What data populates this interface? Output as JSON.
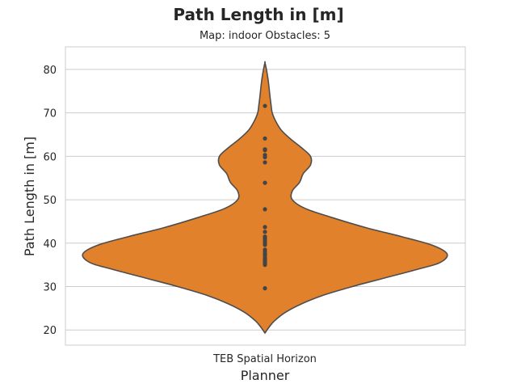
{
  "chart_data": {
    "type": "violin",
    "title": "Path Length in [m]",
    "subtitle": "Map: indoor Obstacles: 5",
    "xlabel": "Planner",
    "ylabel": "Path Length in [m]",
    "categories": [
      "TEB Spatial Horizon"
    ],
    "ylim": [
      16.5,
      85.2
    ],
    "yticks": [
      20,
      30,
      40,
      50,
      60,
      70,
      80
    ],
    "grid": true,
    "fill_color": "#e1812c",
    "edge_color": "#4d4d4d",
    "point_color": "#444444",
    "series": [
      {
        "category": "TEB Spatial Horizon",
        "points": [
          29.6,
          35.0,
          35.2,
          35.5,
          35.8,
          36.2,
          36.6,
          37.1,
          37.5,
          38.0,
          38.5,
          39.6,
          40.1,
          40.6,
          41.1,
          41.5,
          42.6,
          43.7,
          47.8,
          53.9,
          58.6,
          59.8,
          60.3,
          61.4,
          61.6,
          64.1,
          71.6
        ],
        "density_profile": [
          [
            19.3,
            0.0
          ],
          [
            20.5,
            0.02
          ],
          [
            22,
            0.05
          ],
          [
            24,
            0.11
          ],
          [
            26,
            0.2
          ],
          [
            28,
            0.32
          ],
          [
            30,
            0.48
          ],
          [
            32,
            0.66
          ],
          [
            34,
            0.84
          ],
          [
            35.5,
            0.96
          ],
          [
            37.5,
            1.0
          ],
          [
            39.5,
            0.92
          ],
          [
            41.5,
            0.75
          ],
          [
            43.5,
            0.56
          ],
          [
            46,
            0.36
          ],
          [
            48,
            0.22
          ],
          [
            50,
            0.15
          ],
          [
            52,
            0.15
          ],
          [
            54,
            0.19
          ],
          [
            56,
            0.21
          ],
          [
            58,
            0.25
          ],
          [
            60,
            0.25
          ],
          [
            62,
            0.2
          ],
          [
            64,
            0.14
          ],
          [
            66,
            0.09
          ],
          [
            68,
            0.06
          ],
          [
            70,
            0.04
          ],
          [
            72,
            0.033
          ],
          [
            74,
            0.027
          ],
          [
            76,
            0.022
          ],
          [
            78,
            0.016
          ],
          [
            80,
            0.008
          ],
          [
            81.6,
            0.0
          ]
        ]
      }
    ]
  }
}
